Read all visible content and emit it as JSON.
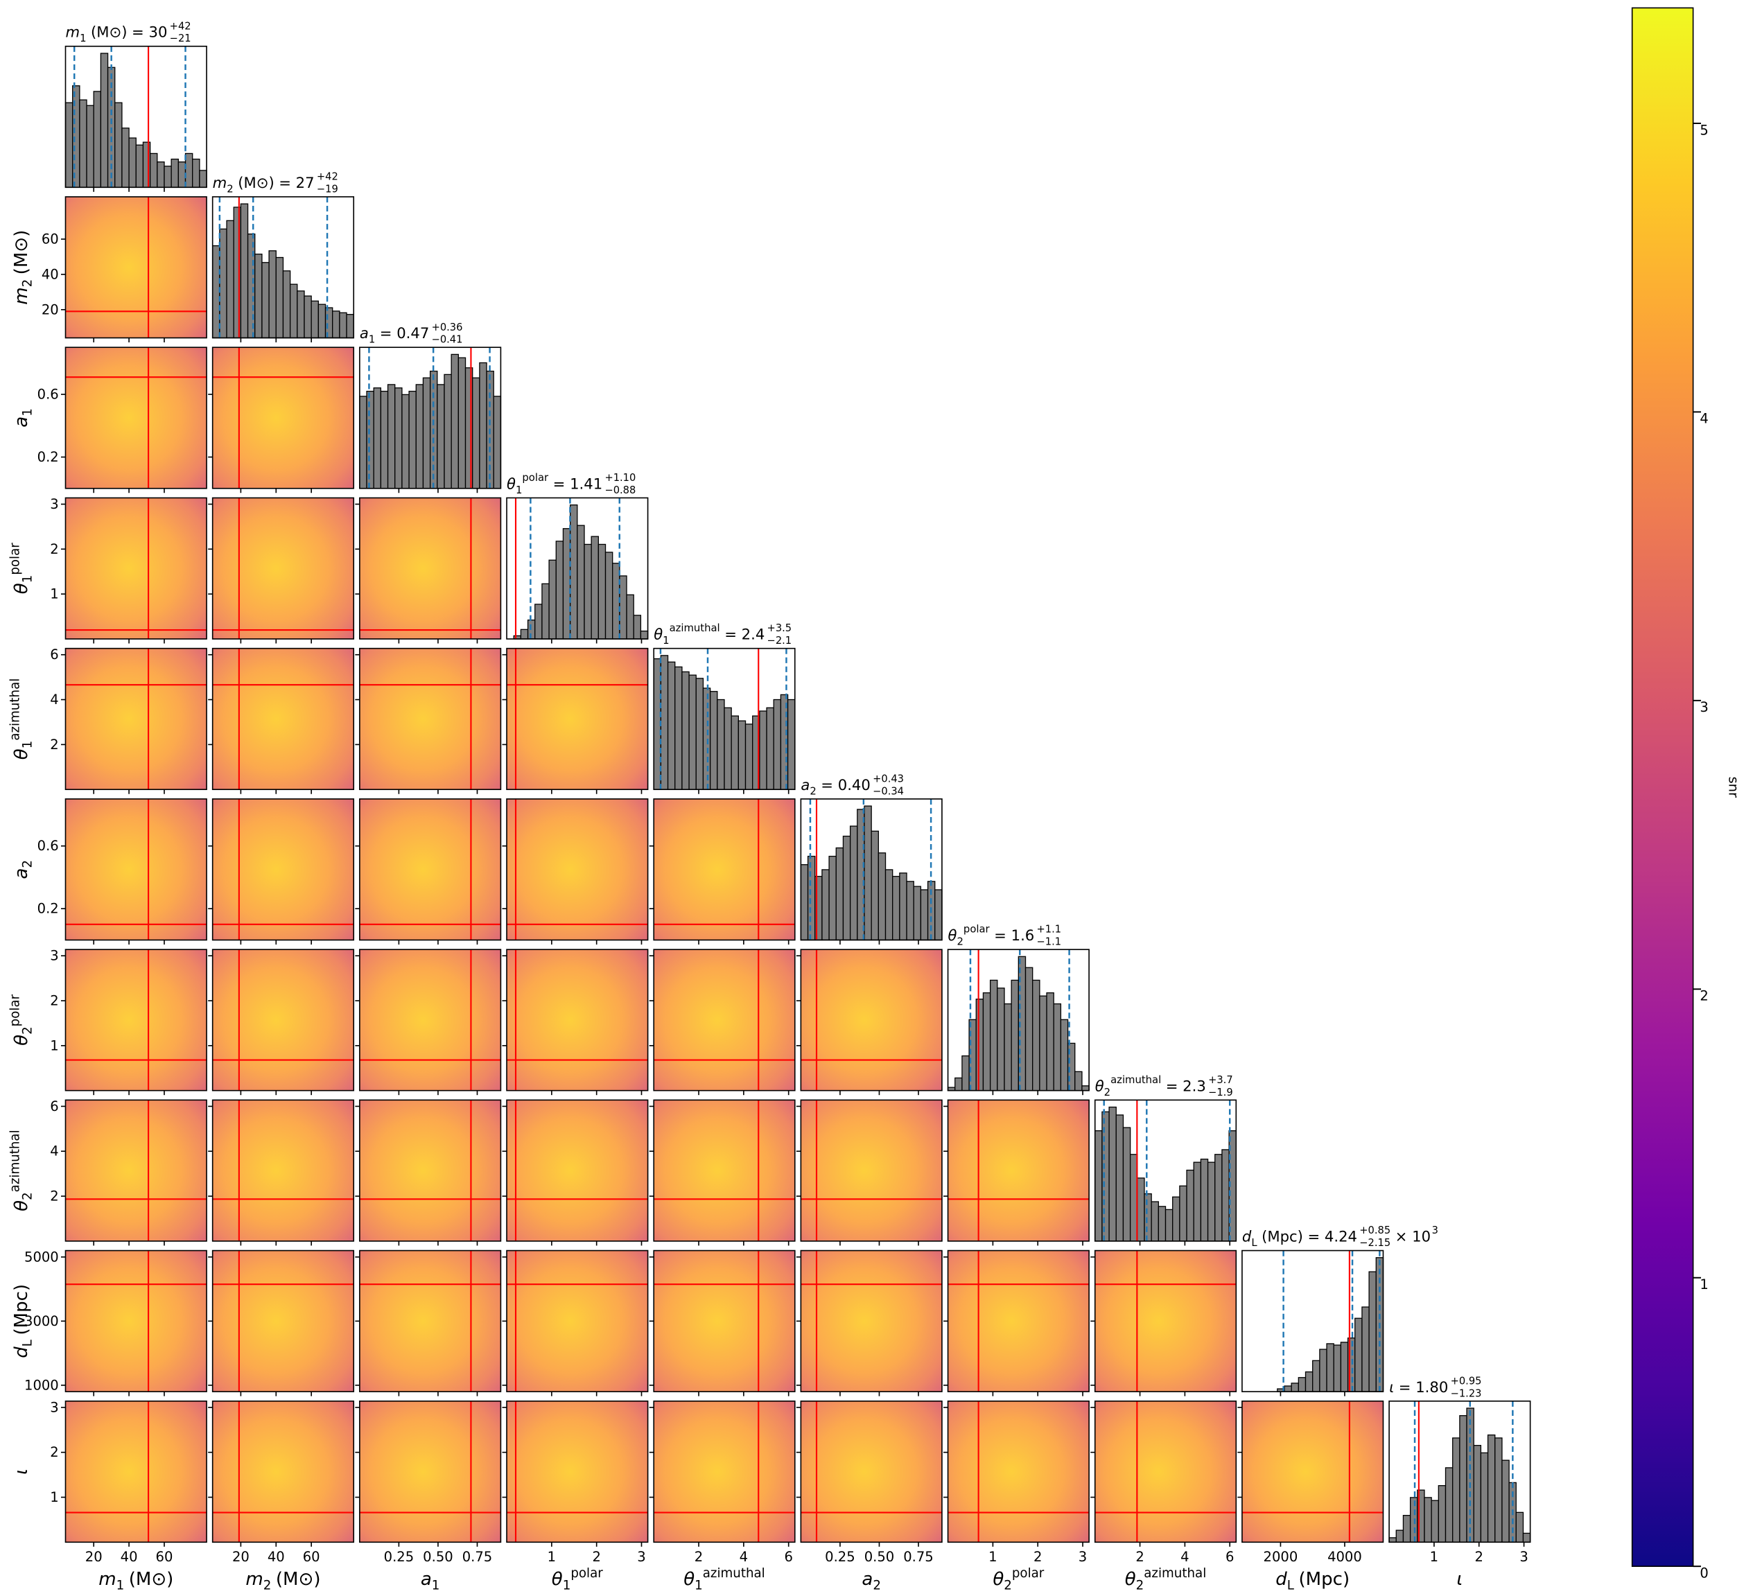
{
  "chart_data": {
    "type": "corner",
    "hist_color": "#808080",
    "quantile_color": "#1f77b4",
    "truth_color": "#ff0000",
    "colormap": [
      "#0d0887",
      "#46039f",
      "#7201a8",
      "#9c179e",
      "#bd3786",
      "#d8576b",
      "#ed7953",
      "#fb9f3a",
      "#fdca26",
      "#f0f921"
    ],
    "parameters": [
      {
        "symbol": "m",
        "sub": "1",
        "unit": "(M⊙)",
        "title": {
          "text": "= 30",
          "plus": "+42",
          "minus": "−21"
        },
        "lim": [
          4,
          84
        ],
        "ticks": [
          20,
          40,
          60
        ],
        "bins": [
          4,
          8,
          12,
          16,
          20,
          24,
          28,
          32,
          36,
          40,
          44,
          48,
          52,
          56,
          60,
          64,
          68,
          72,
          76,
          80,
          84
        ],
        "counts": [
          60,
          72,
          62,
          58,
          68,
          95,
          85,
          60,
          42,
          35,
          30,
          32,
          24,
          18,
          15,
          20,
          18,
          24,
          20,
          12
        ],
        "quantiles": [
          9,
          30,
          72
        ],
        "truth": 51
      },
      {
        "symbol": "m",
        "sub": "2",
        "unit": "(M⊙)",
        "title": {
          "text": "= 27",
          "plus": "+42",
          "minus": "−19"
        },
        "lim": [
          4,
          84
        ],
        "ticks": [
          20,
          40,
          60
        ],
        "bins": [
          4,
          8,
          12,
          16,
          20,
          24,
          28,
          32,
          36,
          40,
          44,
          48,
          52,
          56,
          60,
          64,
          68,
          72,
          76,
          80,
          84
        ],
        "counts": [
          55,
          65,
          70,
          78,
          80,
          62,
          50,
          45,
          52,
          48,
          40,
          32,
          28,
          25,
          22,
          20,
          18,
          16,
          15,
          14
        ],
        "quantiles": [
          8,
          27,
          69
        ],
        "truth": 19
      },
      {
        "symbol": "a",
        "sub": "1",
        "title": {
          "text": "= 0.47",
          "plus": "+0.36",
          "minus": "−0.41"
        },
        "lim": [
          0,
          0.9
        ],
        "ticks": [
          0.25,
          {
            "value": 0.5,
            "label": "0.50"
          },
          0.75
        ],
        "yticks": [
          0.2,
          0.6
        ],
        "bins": [
          0,
          0.045,
          0.09,
          0.135,
          0.18,
          0.225,
          0.27,
          0.315,
          0.36,
          0.405,
          0.45,
          0.495,
          0.54,
          0.585,
          0.63,
          0.675,
          0.72,
          0.765,
          0.81,
          0.855,
          0.9
        ],
        "counts": [
          55,
          58,
          60,
          58,
          62,
          60,
          56,
          58,
          62,
          66,
          70,
          62,
          68,
          80,
          78,
          72,
          66,
          75,
          70,
          55
        ],
        "quantiles": [
          0.06,
          0.47,
          0.83
        ],
        "truth": 0.71
      },
      {
        "symbol": "θ",
        "sub": "1",
        "sup": "polar",
        "title": {
          "text": "= 1.41",
          "plus": "+1.10",
          "minus": "−0.88"
        },
        "lim": [
          0,
          3.14
        ],
        "ticks": [
          1,
          2,
          3
        ],
        "bins": [
          0,
          0.157,
          0.314,
          0.471,
          0.628,
          0.785,
          0.942,
          1.099,
          1.256,
          1.413,
          1.57,
          1.727,
          1.884,
          2.041,
          2.198,
          2.355,
          2.512,
          2.669,
          2.826,
          2.983,
          3.14
        ],
        "counts": [
          0,
          2,
          6,
          12,
          22,
          35,
          50,
          62,
          70,
          85,
          72,
          60,
          65,
          60,
          55,
          48,
          40,
          28,
          15,
          5
        ],
        "quantiles": [
          0.53,
          1.41,
          2.51
        ],
        "truth": 0.2
      },
      {
        "symbol": "θ",
        "sub": "1",
        "sup": "azimuthal",
        "title": {
          "text": "= 2.4",
          "plus": "+3.5",
          "minus": "−2.1"
        },
        "lim": [
          0,
          6.28
        ],
        "ticks": [
          2,
          4,
          6
        ],
        "bins": [
          0,
          0.314,
          0.628,
          0.942,
          1.256,
          1.57,
          1.884,
          2.198,
          2.512,
          2.826,
          3.14,
          3.454,
          3.768,
          4.082,
          4.396,
          4.71,
          5.024,
          5.338,
          5.652,
          5.966,
          6.28
        ],
        "counts": [
          80,
          82,
          78,
          75,
          72,
          70,
          68,
          62,
          60,
          55,
          50,
          45,
          42,
          40,
          45,
          48,
          50,
          55,
          58,
          55
        ],
        "quantiles": [
          0.3,
          2.4,
          5.9
        ],
        "truth": 4.66
      },
      {
        "symbol": "a",
        "sub": "2",
        "title": {
          "text": "= 0.40",
          "plus": "+0.43",
          "minus": "−0.34"
        },
        "lim": [
          0,
          0.9
        ],
        "ticks": [
          0.25,
          {
            "value": 0.5,
            "label": "0.50"
          },
          0.75
        ],
        "yticks": [
          0.2,
          0.6
        ],
        "bins": [
          0,
          0.045,
          0.09,
          0.135,
          0.18,
          0.225,
          0.27,
          0.315,
          0.36,
          0.405,
          0.45,
          0.495,
          0.54,
          0.585,
          0.63,
          0.675,
          0.72,
          0.765,
          0.81,
          0.855,
          0.9
        ],
        "counts": [
          45,
          50,
          38,
          42,
          50,
          55,
          62,
          68,
          78,
          80,
          65,
          52,
          42,
          38,
          40,
          35,
          32,
          30,
          35,
          30
        ],
        "quantiles": [
          0.06,
          0.4,
          0.83
        ],
        "truth": 0.1
      },
      {
        "symbol": "θ",
        "sub": "2",
        "sup": "polar",
        "title": {
          "text": "= 1.6",
          "plus": "+1.1",
          "minus": "−1.1"
        },
        "lim": [
          0,
          3.14
        ],
        "ticks": [
          1,
          2,
          3
        ],
        "bins": [
          0,
          0.157,
          0.314,
          0.471,
          0.628,
          0.785,
          0.942,
          1.099,
          1.256,
          1.413,
          1.57,
          1.727,
          1.884,
          2.041,
          2.198,
          2.355,
          2.512,
          2.669,
          2.826,
          2.983,
          3.14
        ],
        "counts": [
          2,
          8,
          22,
          45,
          58,
          62,
          70,
          65,
          55,
          70,
          85,
          78,
          70,
          60,
          62,
          55,
          45,
          30,
          12,
          3
        ],
        "quantiles": [
          0.5,
          1.6,
          2.7
        ],
        "truth": 0.68
      },
      {
        "symbol": "θ",
        "sub": "2",
        "sup": "azimuthal",
        "title": {
          "text": "= 2.3",
          "plus": "+3.7",
          "minus": "−1.9"
        },
        "lim": [
          0,
          6.28
        ],
        "ticks": [
          2,
          4,
          6
        ],
        "bins": [
          0,
          0.314,
          0.628,
          0.942,
          1.256,
          1.57,
          1.884,
          2.198,
          2.512,
          2.826,
          3.14,
          3.454,
          3.768,
          4.082,
          4.396,
          4.71,
          5.024,
          5.338,
          5.652,
          5.966,
          6.28
        ],
        "counts": [
          70,
          82,
          85,
          80,
          72,
          55,
          40,
          30,
          25,
          22,
          20,
          28,
          35,
          45,
          50,
          52,
          50,
          55,
          58,
          70
        ],
        "quantiles": [
          0.4,
          2.3,
          6.0
        ],
        "truth": 1.87
      },
      {
        "symbol": "d",
        "sub": "L",
        "unit": "(Mpc)",
        "title": {
          "text": "= 4.24",
          "plus": "+0.85",
          "minus": "−2.15",
          "suffix": "× 10",
          "suffix_sup": "3"
        },
        "lim": [
          800,
          5200
        ],
        "ticks": [
          2000,
          4000
        ],
        "yticks": [
          1000,
          3000,
          5000
        ],
        "bins": [
          800,
          1020,
          1240,
          1460,
          1680,
          1900,
          2120,
          2340,
          2560,
          2780,
          3000,
          3220,
          3440,
          3660,
          3880,
          4100,
          4320,
          4540,
          4760,
          4980,
          5200
        ],
        "counts": [
          0,
          0,
          0,
          0,
          0,
          2,
          4,
          6,
          10,
          14,
          22,
          30,
          34,
          33,
          35,
          38,
          52,
          60,
          85,
          95
        ],
        "quantiles": [
          2090,
          4240,
          5090
        ],
        "truth": 4150
      },
      {
        "symbol": "ι",
        "title": {
          "text": "= 1.80",
          "plus": "+0.95",
          "minus": "−1.23"
        },
        "lim": [
          0,
          3.14
        ],
        "ticks": [
          1,
          2,
          3
        ],
        "bins": [
          0,
          0.157,
          0.314,
          0.471,
          0.628,
          0.785,
          0.942,
          1.099,
          1.256,
          1.413,
          1.57,
          1.727,
          1.884,
          2.041,
          2.198,
          2.355,
          2.512,
          2.669,
          2.826,
          2.983,
          3.14
        ],
        "counts": [
          3,
          8,
          18,
          30,
          35,
          30,
          28,
          38,
          50,
          70,
          85,
          90,
          65,
          60,
          72,
          70,
          55,
          40,
          20,
          6
        ],
        "quantiles": [
          0.57,
          1.8,
          2.75
        ],
        "truth": 0.66
      }
    ],
    "colorbar": {
      "label": "snr",
      "lim": [
        0,
        5.4
      ],
      "ticks": [
        0,
        1,
        2,
        3,
        4,
        5
      ]
    }
  }
}
